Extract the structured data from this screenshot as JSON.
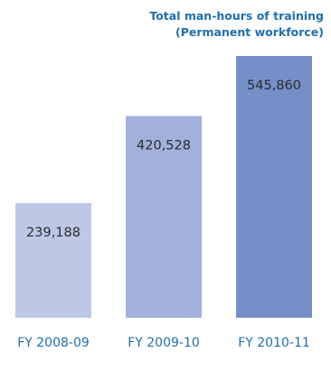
{
  "chart_data": {
    "type": "bar",
    "title": [
      "Total man-hours of training",
      "(Permanent workforce)"
    ],
    "categories": [
      "FY 2008-09",
      "FY 2009-10",
      "FY 2010-11"
    ],
    "values": [
      239188,
      420528,
      545860
    ],
    "data_labels": [
      "239,188",
      "420,528",
      "545,860"
    ],
    "colors": [
      "#bcc8e6",
      "#a1b1dc",
      "#7590c9"
    ],
    "grid": false,
    "legend": "none"
  }
}
